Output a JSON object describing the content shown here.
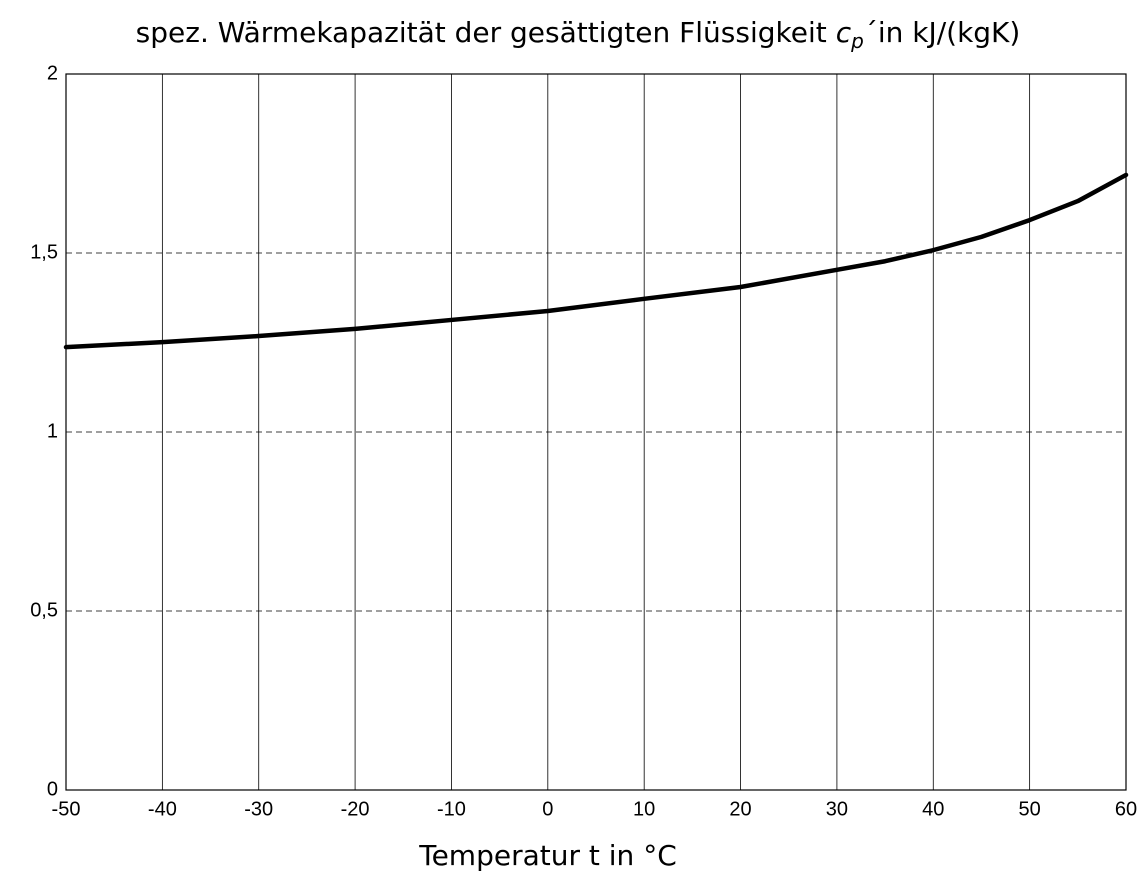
{
  "chart_data": {
    "type": "line",
    "title": [
      "spez. Wärmekapazität der gesättigten Flüssigkeit",
      "c",
      "p",
      "´in kJ/(kgK)"
    ],
    "x_label": "Temperatur t in °C",
    "x": [
      -50,
      -40,
      -30,
      -20,
      -10,
      0,
      10,
      20,
      30,
      35,
      40,
      45,
      50,
      55,
      60
    ],
    "series": [
      {
        "name": "cp'",
        "color": "#000000",
        "values": [
          1.237,
          1.251,
          1.268,
          1.288,
          1.313,
          1.338,
          1.372,
          1.405,
          1.453,
          1.477,
          1.508,
          1.545,
          1.592,
          1.645,
          1.718
        ]
      }
    ],
    "xlim": [
      -50,
      60
    ],
    "xticks": [
      -50,
      -40,
      -30,
      -20,
      -10,
      0,
      10,
      20,
      30,
      40,
      50,
      60
    ],
    "ylim": [
      0,
      2
    ],
    "yticks": [
      0,
      {
        "value": 0.5,
        "label": "0,5"
      },
      1,
      {
        "value": 1.5,
        "label": "1,5"
      },
      2
    ],
    "x_grid": "solid",
    "y_grid": "dashed"
  }
}
